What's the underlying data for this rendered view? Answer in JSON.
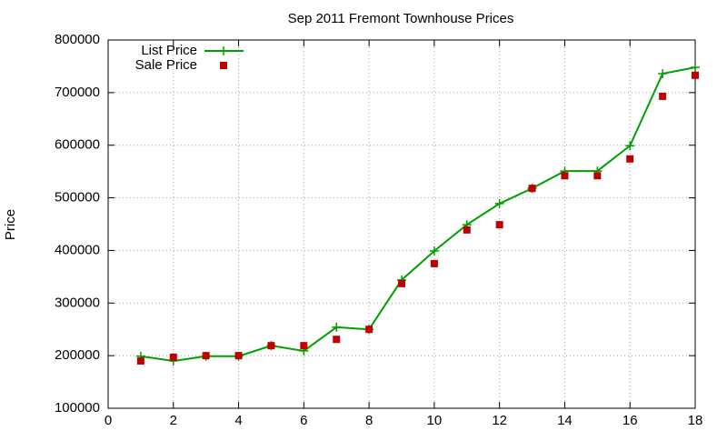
{
  "chart_data": {
    "type": "line",
    "title": "Sep 2011 Fremont Townhouse Prices",
    "y_label": "Price",
    "x": [
      1,
      2,
      3,
      4,
      5,
      6,
      7,
      8,
      9,
      10,
      11,
      12,
      13,
      14,
      15,
      16,
      17,
      18
    ],
    "series": [
      {
        "name": "List Price",
        "color": "#00a000",
        "style": "linespoints",
        "values": [
          199000,
          190000,
          199000,
          199000,
          219000,
          209000,
          254000,
          250000,
          344000,
          399000,
          449000,
          489000,
          518000,
          551000,
          551000,
          599000,
          736000,
          748000
        ]
      },
      {
        "name": "Sale Price",
        "color": "#c00000",
        "style": "points",
        "values": [
          190000,
          197000,
          200000,
          200000,
          219000,
          219000,
          231000,
          250000,
          337000,
          375000,
          439000,
          449000,
          518000,
          542000,
          542000,
          574000,
          693000,
          733000
        ]
      }
    ],
    "xlim": [
      0,
      18
    ],
    "xticks": [
      0,
      2,
      4,
      6,
      8,
      10,
      12,
      14,
      16,
      18
    ],
    "ylim": [
      100000,
      800000
    ],
    "yticks": [
      100000,
      200000,
      300000,
      400000,
      500000,
      600000,
      700000,
      800000
    ],
    "grid": true,
    "legend": "top-left"
  }
}
